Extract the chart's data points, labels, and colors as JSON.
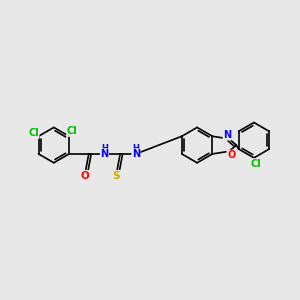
{
  "bg_color": "#e8e8e8",
  "bond_color": "#000000",
  "cl_color": "#00bb00",
  "o_color": "#ff0000",
  "n_color": "#0000ff",
  "s_color": "#ccaa00",
  "font_size_atom": 6.5,
  "fig_width": 3.0,
  "fig_height": 3.0,
  "dpi": 100,
  "xlim": [
    0,
    300
  ],
  "ylim": [
    0,
    300
  ]
}
